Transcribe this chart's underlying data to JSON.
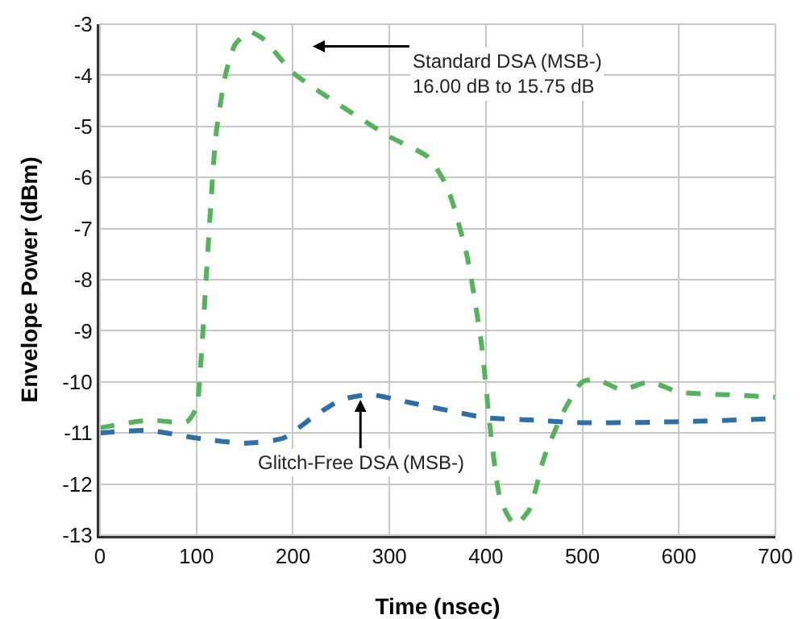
{
  "chart_data": {
    "type": "line",
    "xlabel": "Time (nsec)",
    "ylabel": "Envelope Power (dBm)",
    "xlim": [
      0,
      700
    ],
    "xticks": [
      0,
      100,
      200,
      300,
      400,
      500,
      600,
      700
    ],
    "ylim": [
      -13,
      -3
    ],
    "yticks": [
      -13,
      -12,
      -11,
      -10,
      -9,
      -8,
      -7,
      -6,
      -5,
      -4,
      -3
    ],
    "grid": true,
    "line_style": "dashed",
    "marker": "none",
    "series": [
      {
        "color": "#55b35d",
        "x": [
          0,
          50,
          90,
          100,
          105,
          110,
          115,
          120,
          130,
          140,
          155,
          170,
          200,
          250,
          300,
          340,
          360,
          380,
          395,
          405,
          415,
          430,
          445,
          460,
          480,
          500,
          515,
          540,
          570,
          600,
          650,
          700
        ],
        "values": [
          -10.9,
          -10.75,
          -10.78,
          -10.5,
          -9.5,
          -8,
          -6.5,
          -5.2,
          -4,
          -3.4,
          -3.15,
          -3.3,
          -3.95,
          -4.6,
          -5.2,
          -5.6,
          -6.2,
          -7.5,
          -9.2,
          -11,
          -12.3,
          -12.8,
          -12.5,
          -11.5,
          -10.6,
          -10.0,
          -9.95,
          -10.15,
          -10.0,
          -10.2,
          -10.25,
          -10.3
        ]
      },
      {
        "color": "#2f6fa8",
        "x": [
          0,
          50,
          100,
          150,
          190,
          220,
          250,
          280,
          320,
          400,
          450,
          500,
          600,
          700
        ],
        "values": [
          -11.0,
          -10.95,
          -11.1,
          -11.2,
          -11.1,
          -10.7,
          -10.35,
          -10.25,
          -10.4,
          -10.7,
          -10.75,
          -10.8,
          -10.78,
          -10.72
        ]
      }
    ],
    "annotations": [
      "Standard DSA (MSB-)\n16.00 dB to 15.75 dB",
      {
        "text": "Glitch-Free DSA (MSB-)",
        "x": 270,
        "y": -10.35
      }
    ]
  }
}
